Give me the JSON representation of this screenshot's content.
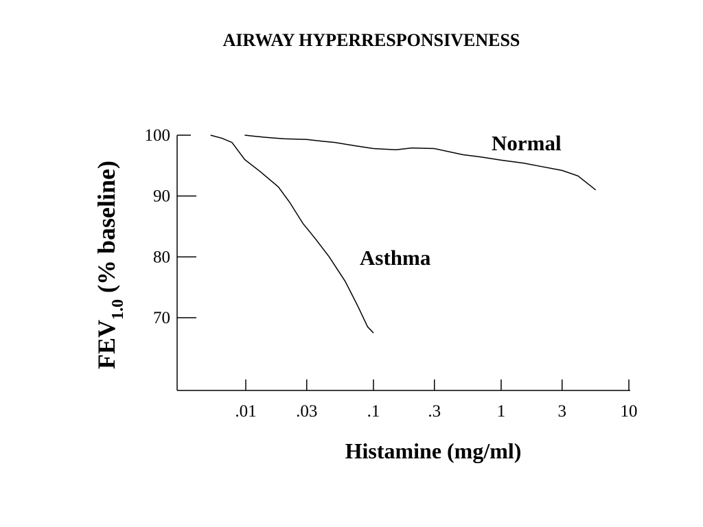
{
  "chart_data": {
    "type": "line",
    "title": "AIRWAY HYPERRESPONSIVENESS",
    "xlabel": "Histamine (mg/ml)",
    "ylabel": {
      "main": "FEV",
      "subscript": "1.0",
      "rest": " (% baseline)"
    },
    "x_scale": "log",
    "x_ticks": [
      {
        "value": 0.01,
        "label": ".01"
      },
      {
        "value": 0.03,
        "label": ".03"
      },
      {
        "value": 0.1,
        "label": ".1"
      },
      {
        "value": 0.3,
        "label": ".3"
      },
      {
        "value": 1,
        "label": "1"
      },
      {
        "value": 3,
        "label": "3"
      },
      {
        "value": 10,
        "label": "10"
      }
    ],
    "y_ticks": [
      {
        "value": 100,
        "label": "100"
      },
      {
        "value": 90,
        "label": "90"
      },
      {
        "value": 80,
        "label": "80"
      },
      {
        "value": 70,
        "label": "70"
      }
    ],
    "series": [
      {
        "name": "Normal",
        "x": [
          0.0098,
          0.012,
          0.015,
          0.02,
          0.03,
          0.04,
          0.05,
          0.07,
          0.1,
          0.15,
          0.2,
          0.3,
          0.5,
          0.7,
          1.0,
          1.5,
          2.0,
          3.0,
          4.0,
          5.5
        ],
        "y": [
          100,
          99.8,
          99.6,
          99.4,
          99.3,
          99.0,
          98.8,
          98.3,
          97.8,
          97.6,
          97.9,
          97.8,
          96.8,
          96.4,
          95.9,
          95.4,
          94.9,
          94.2,
          93.3,
          91.0
        ]
      },
      {
        "name": "Asthma",
        "x": [
          0.0053,
          0.0065,
          0.0078,
          0.0098,
          0.013,
          0.018,
          0.022,
          0.028,
          0.035,
          0.045,
          0.06,
          0.075,
          0.09,
          0.1
        ],
        "y": [
          100,
          99.5,
          98.8,
          96.0,
          94.0,
          91.5,
          89.0,
          85.5,
          83.0,
          80.0,
          76.0,
          72.0,
          68.5,
          67.5
        ]
      }
    ]
  }
}
